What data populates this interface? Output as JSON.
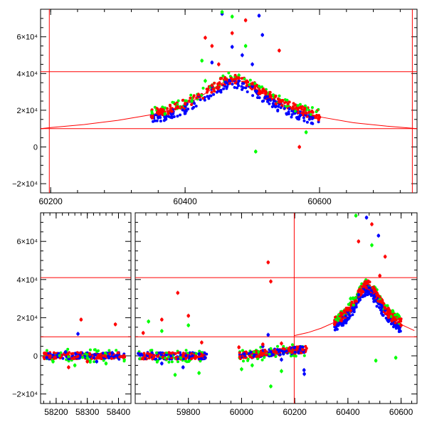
{
  "chart_data": [
    {
      "type": "scatter",
      "title": "",
      "xlabel": "",
      "ylabel": "",
      "xlim": [
        60185,
        60745
      ],
      "ylim": [
        -25000,
        75000
      ],
      "x_ticks": [
        60200,
        60400,
        60600
      ],
      "y_ticks": [
        -20000,
        0,
        20000,
        40000,
        60000
      ],
      "y_tick_labels": [
        "−2×10⁴",
        "0",
        "2×10⁴",
        "4×10⁴",
        "6×10⁴"
      ],
      "grid": false,
      "reference_lines": {
        "horizontal": [
          10000,
          41000
        ],
        "vertical": [
          60198,
          60738
        ]
      },
      "model_curve": {
        "x": [
          60185,
          60200,
          60250,
          60300,
          60350,
          60380,
          60400,
          60420,
          60440,
          60460,
          60470,
          60480,
          60500,
          60520,
          60540,
          60560,
          60600,
          60650,
          60700,
          60745
        ],
        "y": [
          10000,
          10600,
          12200,
          14500,
          17600,
          20400,
          23000,
          26800,
          31500,
          35800,
          37000,
          36400,
          33000,
          28200,
          24000,
          20900,
          16400,
          13200,
          11300,
          10000
        ]
      },
      "series_colors": {
        "blue": "#0000ff",
        "green": "#00ff00",
        "red": "#ff0000"
      },
      "series": [
        {
          "color": "blue",
          "points": [
            [
              60360,
              16000
            ],
            [
              60380,
              18500
            ],
            [
              60400,
              22500
            ],
            [
              60420,
              28000
            ],
            [
              60440,
              33000
            ],
            [
              60460,
              35500
            ],
            [
              60480,
              36000
            ],
            [
              60500,
              33000
            ],
            [
              60520,
              27500
            ],
            [
              60540,
              23500
            ],
            [
              60560,
              20000
            ],
            [
              60590,
              15800
            ],
            [
              60455,
              72500
            ],
            [
              60510,
              71500
            ],
            [
              60515,
              61000
            ],
            [
              60470,
              54500
            ],
            [
              60485,
              50000
            ],
            [
              60440,
              46000
            ],
            [
              60500,
              45000
            ]
          ]
        },
        {
          "color": "green",
          "points": [
            [
              60370,
              18000
            ],
            [
              60410,
              25000
            ],
            [
              60430,
              36000
            ],
            [
              60455,
              73500
            ],
            [
              60470,
              71000
            ],
            [
              60490,
              55000
            ],
            [
              60505,
              -2500
            ],
            [
              60580,
              8000
            ],
            [
              60425,
              47000
            ],
            [
              60480,
              39000
            ],
            [
              60560,
              21000
            ]
          ]
        },
        {
          "color": "red",
          "points": [
            [
              60350,
              16500
            ],
            [
              60380,
              19500
            ],
            [
              60400,
              23500
            ],
            [
              60420,
              28500
            ],
            [
              60440,
              33500
            ],
            [
              60460,
              37000
            ],
            [
              60480,
              37500
            ],
            [
              60500,
              34500
            ],
            [
              60520,
              29000
            ],
            [
              60540,
              24500
            ],
            [
              60560,
              21000
            ],
            [
              60580,
              18500
            ],
            [
              60600,
              16200
            ],
            [
              60430,
              59500
            ],
            [
              60440,
              55000
            ],
            [
              60490,
              69000
            ],
            [
              60540,
              52500
            ],
            [
              60570,
              0
            ],
            [
              60450,
              45000
            ],
            [
              60470,
              62000
            ]
          ]
        }
      ]
    },
    {
      "type": "scatter",
      "title": "",
      "xlabel": "",
      "ylabel": "",
      "x_axis_break": true,
      "segments": [
        {
          "xlim": [
            58150,
            58440
          ],
          "x_ticks": [
            58200,
            58300,
            58400
          ]
        },
        {
          "xlim": [
            59600,
            60660
          ],
          "x_ticks": [
            59800,
            60000,
            60200,
            60400,
            60600
          ]
        }
      ],
      "ylim": [
        -25000,
        75000
      ],
      "y_ticks": [
        -20000,
        0,
        20000,
        40000,
        60000
      ],
      "y_tick_labels": [
        "−2×10⁴",
        "0",
        "2×10⁴",
        "4×10⁴",
        "6×10⁴"
      ],
      "grid": false,
      "reference_lines": {
        "horizontal": [
          10000,
          41000
        ],
        "vertical": [
          60198
        ]
      },
      "model_curve": {
        "x": [
          60198,
          60250,
          60300,
          60350,
          60380,
          60400,
          60420,
          60440,
          60460,
          60470,
          60480,
          60500,
          60520,
          60540,
          60560,
          60600,
          60650
        ],
        "y": [
          10600,
          12200,
          14500,
          17600,
          20400,
          23000,
          26800,
          31500,
          35800,
          37000,
          36400,
          33000,
          28200,
          24000,
          20900,
          16400,
          13200
        ]
      },
      "series_colors": {
        "blue": "#0000ff",
        "green": "#00ff00",
        "red": "#ff0000"
      },
      "series": [
        {
          "color": "blue",
          "points": [
            [
              58170,
              -1000
            ],
            [
              58230,
              2000
            ],
            [
              58270,
              11500
            ],
            [
              58330,
              -3000
            ],
            [
              58380,
              1500
            ],
            [
              59620,
              500
            ],
            [
              59700,
              -4000
            ],
            [
              59780,
              -6000
            ],
            [
              59840,
              1000
            ],
            [
              60010,
              1000
            ],
            [
              60080,
              5000
            ],
            [
              60100,
              11000
            ],
            [
              60150,
              -2000
            ],
            [
              60235,
              -7500
            ],
            [
              60236,
              -9500
            ],
            [
              60360,
              16000
            ],
            [
              60400,
              23000
            ],
            [
              60440,
              32000
            ],
            [
              60470,
              34000
            ],
            [
              60500,
              31000
            ],
            [
              60540,
              24000
            ],
            [
              60590,
              15500
            ],
            [
              60470,
              72500
            ],
            [
              60515,
              63000
            ]
          ]
        },
        {
          "color": "green",
          "points": [
            [
              58190,
              -3000
            ],
            [
              58260,
              -5000
            ],
            [
              58300,
              -1000
            ],
            [
              58360,
              -4000
            ],
            [
              59650,
              18000
            ],
            [
              59700,
              13000
            ],
            [
              59750,
              -10000
            ],
            [
              59800,
              16000
            ],
            [
              59840,
              -9000
            ],
            [
              60000,
              -7000
            ],
            [
              60040,
              -5000
            ],
            [
              60110,
              -16000
            ],
            [
              60150,
              -8000
            ],
            [
              60430,
              73500
            ],
            [
              60490,
              58000
            ],
            [
              60505,
              -2500
            ],
            [
              60580,
              -1000
            ],
            [
              60410,
              30000
            ]
          ]
        },
        {
          "color": "red",
          "points": [
            [
              58180,
              0
            ],
            [
              58240,
              -6000
            ],
            [
              58280,
              19000
            ],
            [
              58300,
              -3000
            ],
            [
              58390,
              16500
            ],
            [
              59630,
              12000
            ],
            [
              59700,
              19000
            ],
            [
              59760,
              33000
            ],
            [
              59800,
              21000
            ],
            [
              59850,
              7000
            ],
            [
              59990,
              4500
            ],
            [
              60080,
              6000
            ],
            [
              60100,
              49000
            ],
            [
              60110,
              39000
            ],
            [
              60150,
              6500
            ],
            [
              60190,
              2000
            ],
            [
              60350,
              16500
            ],
            [
              60400,
              24000
            ],
            [
              60440,
              34000
            ],
            [
              60470,
              38000
            ],
            [
              60500,
              35000
            ],
            [
              60540,
              25000
            ],
            [
              60580,
              19000
            ],
            [
              60600,
              16000
            ],
            [
              60440,
              60000
            ],
            [
              60490,
              69000
            ],
            [
              60540,
              52000
            ],
            [
              60520,
              42000
            ]
          ]
        }
      ]
    }
  ]
}
